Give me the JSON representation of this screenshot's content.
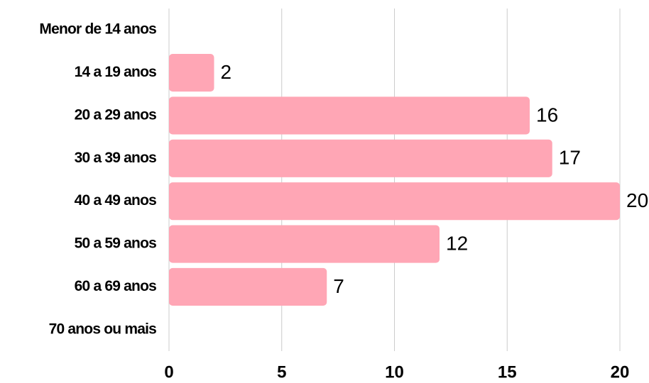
{
  "chart_data": {
    "type": "bar",
    "orientation": "horizontal",
    "categories": [
      "Menor de 14 anos",
      "14 a 19 anos",
      "20 a 29 anos",
      "30 a 39 anos",
      "40 a 49 anos",
      "50 a 59 anos",
      "60 a 69 anos",
      "70 anos ou mais"
    ],
    "values": [
      null,
      2,
      16,
      17,
      20,
      12,
      7,
      null
    ],
    "color": "#ffa6b5",
    "xlim": [
      0,
      20
    ],
    "xticks": [
      0,
      5,
      10,
      15,
      20
    ],
    "grid": true
  }
}
